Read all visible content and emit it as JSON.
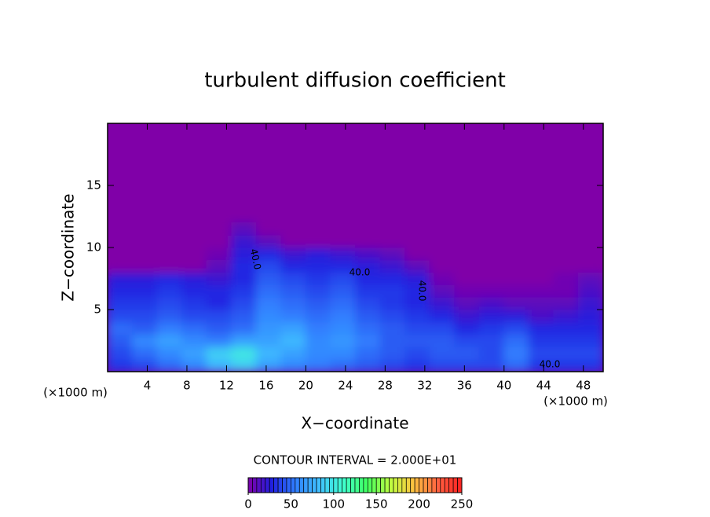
{
  "chart_data": {
    "type": "heatmap",
    "title": "turbulent diffusion coefficient",
    "xlabel": "X−coordinate",
    "ylabel": "Z−coordinate",
    "x_unit": "(×1000 m)",
    "y_unit": "(×1000 m)",
    "xlim": [
      0,
      50
    ],
    "ylim": [
      0,
      20
    ],
    "xticks": [
      4,
      8,
      12,
      16,
      20,
      24,
      28,
      32,
      36,
      40,
      44,
      48
    ],
    "yticks": [
      5,
      10,
      15
    ],
    "x": [
      1.25,
      3.75,
      6.25,
      8.75,
      11.25,
      13.75,
      16.25,
      18.75,
      21.25,
      23.75,
      26.25,
      28.75,
      31.25,
      33.75,
      36.25,
      38.75,
      41.25,
      43.75,
      46.25,
      48.75
    ],
    "y": [
      0.5,
      1.5,
      2.5,
      3.5,
      4.5,
      5.5,
      6.5,
      7.5,
      8.5,
      9.5,
      10.5,
      11.5
    ],
    "z": [
      [
        35,
        40,
        50,
        60,
        80,
        90,
        70,
        60,
        55,
        50,
        45,
        40,
        35,
        40,
        40,
        40,
        50,
        35,
        35,
        35
      ],
      [
        40,
        50,
        60,
        70,
        90,
        100,
        80,
        70,
        60,
        60,
        50,
        45,
        40,
        45,
        45,
        40,
        55,
        40,
        40,
        40
      ],
      [
        45,
        60,
        70,
        60,
        55,
        70,
        70,
        80,
        60,
        65,
        55,
        45,
        45,
        45,
        40,
        40,
        50,
        35,
        35,
        35
      ],
      [
        50,
        45,
        55,
        50,
        45,
        50,
        65,
        70,
        55,
        60,
        50,
        45,
        40,
        40,
        30,
        35,
        40,
        30,
        30,
        30
      ],
      [
        40,
        40,
        45,
        40,
        40,
        45,
        60,
        55,
        50,
        55,
        45,
        40,
        35,
        30,
        20,
        25,
        25,
        15,
        20,
        25
      ],
      [
        35,
        35,
        40,
        35,
        30,
        40,
        55,
        50,
        45,
        50,
        40,
        35,
        30,
        20,
        10,
        15,
        10,
        10,
        10,
        20
      ],
      [
        30,
        30,
        35,
        30,
        30,
        35,
        50,
        45,
        40,
        45,
        35,
        35,
        30,
        10,
        5,
        5,
        5,
        5,
        5,
        15
      ],
      [
        25,
        25,
        30,
        25,
        20,
        30,
        45,
        40,
        35,
        40,
        30,
        30,
        25,
        5,
        0,
        0,
        0,
        0,
        5,
        10
      ],
      [
        0,
        0,
        0,
        0,
        10,
        30,
        40,
        30,
        30,
        30,
        25,
        20,
        10,
        0,
        0,
        0,
        0,
        0,
        0,
        0
      ],
      [
        0,
        0,
        0,
        0,
        5,
        25,
        30,
        20,
        25,
        20,
        15,
        10,
        0,
        0,
        0,
        0,
        0,
        0,
        0,
        0
      ],
      [
        0,
        0,
        0,
        0,
        0,
        20,
        10,
        0,
        0,
        0,
        0,
        0,
        0,
        0,
        0,
        0,
        0,
        0,
        0,
        0
      ],
      [
        0,
        0,
        0,
        0,
        0,
        10,
        0,
        0,
        0,
        0,
        0,
        0,
        0,
        0,
        0,
        0,
        0,
        0,
        0,
        0
      ]
    ],
    "contour_labels": [
      "40.0",
      "40.0",
      "40.0",
      "40.0"
    ],
    "contour_interval": "CONTOUR INTERVAL = 2.000E+01",
    "clim": [
      0,
      250
    ],
    "cticks": [
      0,
      50,
      100,
      150,
      200,
      250
    ],
    "colors": [
      "#8000a8",
      "#2020e0",
      "#3080ff",
      "#40c0ff",
      "#40ffd0",
      "#40ff60",
      "#c0ff40",
      "#ffc040",
      "#ff6040",
      "#ff2020"
    ]
  }
}
